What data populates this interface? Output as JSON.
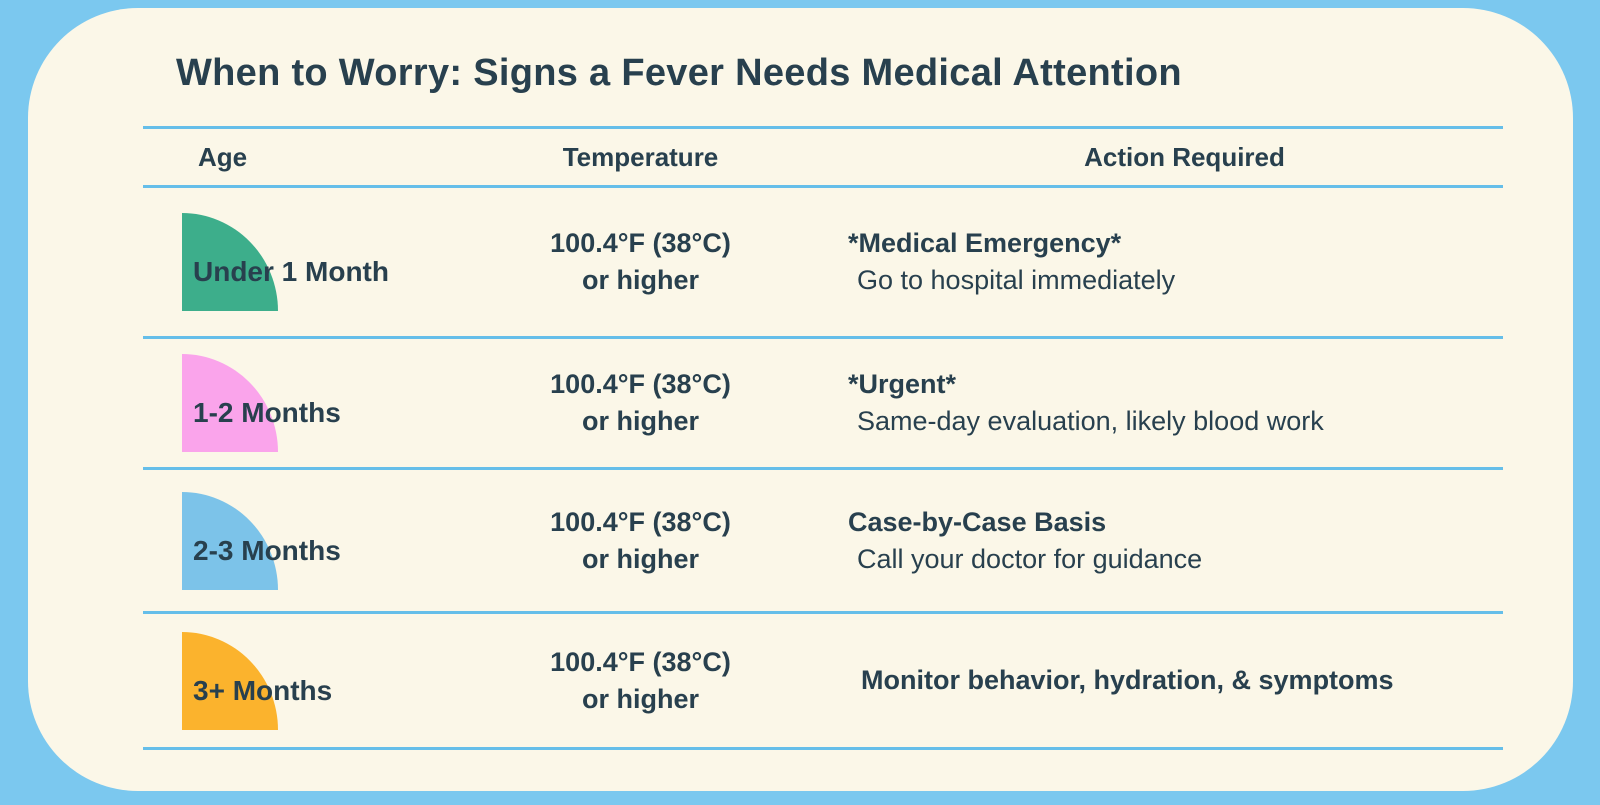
{
  "page": {
    "title": "When to Worry: Signs a Fever Needs Medical Attention"
  },
  "colors": {
    "frame_background": "#7bc8ef",
    "card_background": "#fbf7e8",
    "divider_line": "#65bee9",
    "text": "#28404e"
  },
  "table": {
    "headers": {
      "age": "Age",
      "temperature": "Temperature",
      "action": "Action Required"
    },
    "rows": [
      {
        "age": "Under 1 Month",
        "shape_color": "#3dae8b",
        "shape_name": "green-quarter-circle",
        "temp_line1": "100.4°F (38°C)",
        "temp_line2": "or higher",
        "action_bold": "*Medical Emergency*",
        "action_regular": "Go to hospital immediately"
      },
      {
        "age": "1-2 Months",
        "shape_color": "#faa4eb",
        "shape_name": "pink-quarter-circle",
        "temp_line1": "100.4°F (38°C)",
        "temp_line2": "or higher",
        "action_bold": "*Urgent*",
        "action_regular": "Same-day evaluation, likely blood work"
      },
      {
        "age": "2-3 Months",
        "shape_color": "#7cc3e9",
        "shape_name": "blue-quarter-circle",
        "temp_line1": "100.4°F (38°C)",
        "temp_line2": "or higher",
        "action_bold": "Case-by-Case Basis",
        "action_regular": "Call your doctor for guidance"
      },
      {
        "age": "3+ Months",
        "shape_color": "#fbb32d",
        "shape_name": "yellow-quarter-circle",
        "temp_line1": "100.4°F (38°C)",
        "temp_line2": "or higher",
        "action_bold": "Monitor behavior, hydration, & symptoms",
        "action_regular": ""
      }
    ]
  },
  "chart_data": {
    "type": "table",
    "title": "When to Worry: Signs a Fever Needs Medical Attention",
    "columns": [
      "Age",
      "Temperature",
      "Action Required"
    ],
    "rows": [
      [
        "Under 1 Month",
        "100.4°F (38°C) or higher",
        "*Medical Emergency* — Go to hospital immediately"
      ],
      [
        "1-2 Months",
        "100.4°F (38°C) or higher",
        "*Urgent* — Same-day evaluation, likely blood work"
      ],
      [
        "2-3 Months",
        "100.4°F (38°C) or higher",
        "Case-by-Case Basis — Call your doctor for guidance"
      ],
      [
        "3+ Months",
        "100.4°F (38°C) or higher",
        "Monitor behavior, hydration, & symptoms"
      ]
    ],
    "row_marker_colors": [
      "#3dae8b",
      "#faa4eb",
      "#7cc3e9",
      "#fbb32d"
    ],
    "layout": {
      "grid": "horizontal light-blue rules between rows",
      "legend": "none"
    }
  }
}
